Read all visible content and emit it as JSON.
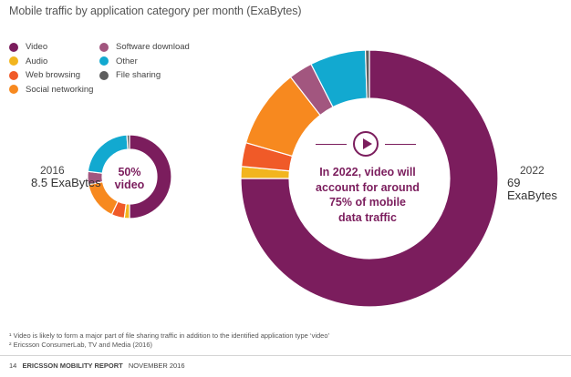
{
  "header": {
    "title": "Mobile traffic by application category per month (ExaBytes)"
  },
  "legend": {
    "col1": [
      {
        "label": "Video",
        "color": "#7b1d5d"
      },
      {
        "label": "Audio",
        "color": "#f2b51e"
      },
      {
        "label": "Web browsing",
        "color": "#f05a28"
      },
      {
        "label": "Social networking",
        "color": "#f7891f"
      }
    ],
    "col2": [
      {
        "label": "Software download",
        "color": "#a2567f"
      },
      {
        "label": "Other",
        "color": "#12a9d0"
      },
      {
        "label": "File sharing",
        "color": "#5e5e5e"
      }
    ]
  },
  "chart_data": [
    {
      "type": "pie",
      "year_label": "2016",
      "total_label": "8.5 ExaBytes",
      "center_text": [
        "50%",
        "video"
      ],
      "categories": [
        "Video",
        "Audio",
        "Web browsing",
        "Social networking",
        "Software download",
        "Other",
        "File sharing"
      ],
      "values": [
        50,
        2,
        5,
        15,
        5,
        22,
        1
      ]
    },
    {
      "type": "pie",
      "year_label": "2022",
      "total_label": "69 ExaBytes",
      "center_text": [
        "In 2022, video will",
        "account for around",
        "75% of mobile",
        "data traffic"
      ],
      "categories": [
        "Video",
        "Audio",
        "Web browsing",
        "Social networking",
        "Software download",
        "Other",
        "File sharing"
      ],
      "values": [
        75,
        1.5,
        3,
        10,
        3,
        7,
        0.5
      ]
    }
  ],
  "footnotes": [
    "¹ Video is likely to form a major part of file sharing traffic in addition to the identified application type ‘video’",
    "² Ericsson ConsumerLab, TV and Media (2016)"
  ],
  "footer": {
    "page": "14",
    "report": "ERICSSON MOBILITY REPORT",
    "date": "NOVEMBER 2016"
  },
  "icons": {
    "play": "play-icon"
  }
}
